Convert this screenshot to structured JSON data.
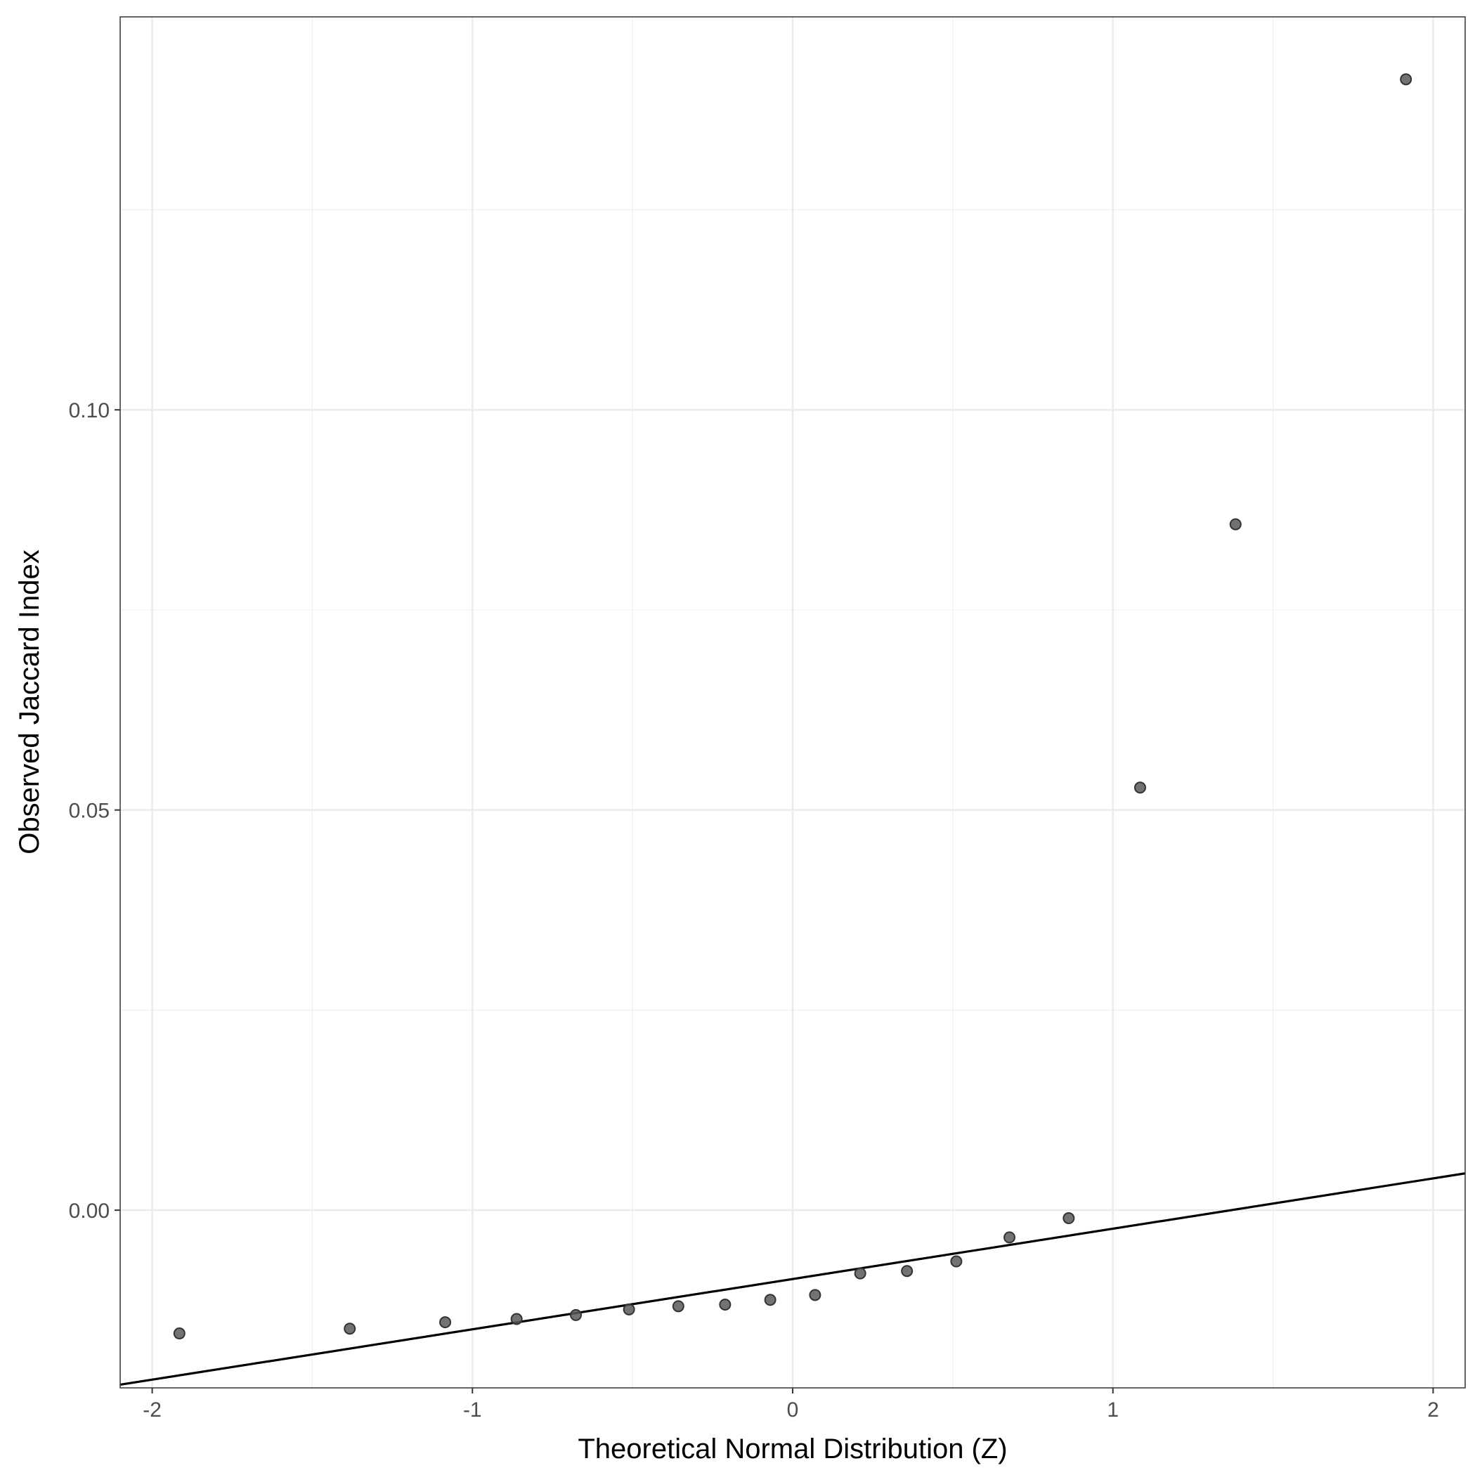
{
  "chart_data": {
    "type": "scatter",
    "title": "",
    "xlabel": "Theoretical Normal Distribution (Z)",
    "ylabel": "Observed Jaccard Index",
    "xlim": [
      -2.1,
      2.1
    ],
    "ylim": [
      -0.0222,
      0.1491
    ],
    "x_ticks": [
      -2,
      -1,
      0,
      1,
      2
    ],
    "x_tick_labels": [
      "-2",
      "-1",
      "0",
      "1",
      "2"
    ],
    "y_ticks": [
      0.0,
      0.05,
      0.1
    ],
    "y_tick_labels": [
      "0.00",
      "0.05",
      "0.10"
    ],
    "grid": true,
    "legend": "none",
    "point_color": "#595959",
    "line_color": "#000000",
    "points": [
      {
        "x": -1.915,
        "y": -0.0154
      },
      {
        "x": -1.383,
        "y": -0.0148
      },
      {
        "x": -1.085,
        "y": -0.014
      },
      {
        "x": -0.862,
        "y": -0.0136
      },
      {
        "x": -0.677,
        "y": -0.0131
      },
      {
        "x": -0.511,
        "y": -0.0124
      },
      {
        "x": -0.357,
        "y": -0.012
      },
      {
        "x": -0.211,
        "y": -0.0118
      },
      {
        "x": -0.07,
        "y": -0.0112
      },
      {
        "x": 0.07,
        "y": -0.0106
      },
      {
        "x": 0.211,
        "y": -0.0079
      },
      {
        "x": 0.357,
        "y": -0.0076
      },
      {
        "x": 0.511,
        "y": -0.0064
      },
      {
        "x": 0.677,
        "y": -0.0034
      },
      {
        "x": 0.862,
        "y": -0.001
      },
      {
        "x": 1.085,
        "y": 0.0528
      },
      {
        "x": 1.383,
        "y": 0.0857
      },
      {
        "x": 1.915,
        "y": 0.1413
      }
    ],
    "reference_line": {
      "x": [
        -2.1,
        2.1
      ],
      "y": [
        -0.0218,
        0.0046
      ]
    }
  }
}
